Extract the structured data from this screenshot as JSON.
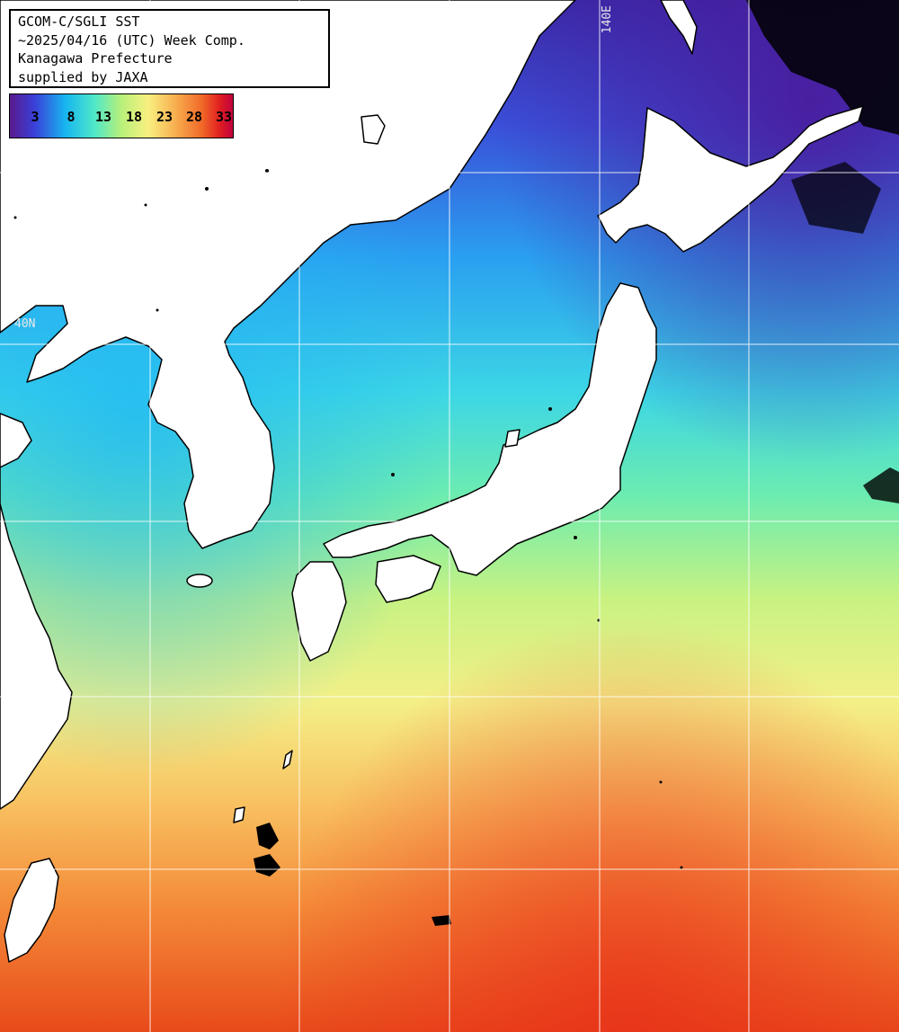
{
  "info": {
    "line1": "GCOM-C/SGLI SST",
    "line2": "~2025/04/16 (UTC) Week Comp.",
    "line3": "Kanagawa Prefecture",
    "line4": "supplied by JAXA"
  },
  "colorbar": {
    "ticks": [
      "3",
      "8",
      "13",
      "18",
      "23",
      "28",
      "33"
    ],
    "colors": [
      "#5a1a8c",
      "#3a3fd8",
      "#17b6f0",
      "#4fe8c8",
      "#b8f07a",
      "#f8f080",
      "#f8b050",
      "#f06a28",
      "#e02020",
      "#c0003c"
    ]
  },
  "grid": {
    "lon_label": "140E",
    "lat_label": "40N",
    "line_color": "#ffffff"
  },
  "map": {
    "land_color": "#ffffff",
    "coast_color": "#000000",
    "cloud_color": "#000000"
  }
}
